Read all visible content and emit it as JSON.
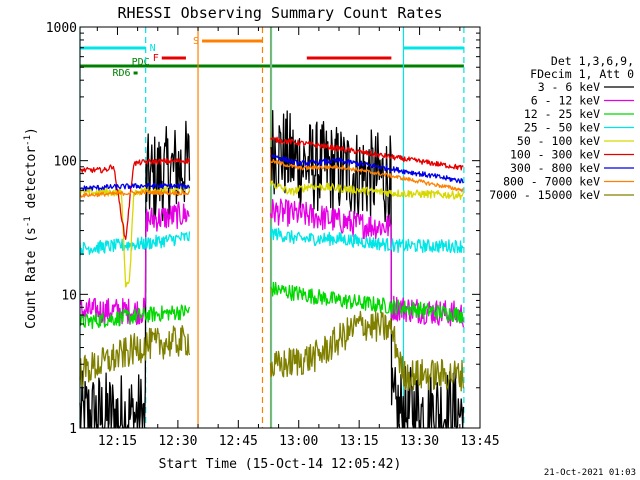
{
  "chart_data": {
    "type": "line",
    "title": "RHESSI Observing Summary Count Rates",
    "xlabel": "Start Time (15-Oct-14 12:05:42)",
    "ylabel": "Count Rate (s⁻¹ detector⁻¹)",
    "ylabel_parts": [
      "Count Rate (s",
      "-1",
      " detector",
      "-1",
      ")"
    ],
    "y_scale": "log",
    "xlim": [
      "12:05:42",
      "13:45"
    ],
    "ylim": [
      1,
      1000
    ],
    "x_ticks": [
      "12:15",
      "12:30",
      "12:45",
      "13:00",
      "13:15",
      "13:30",
      "13:45"
    ],
    "y_ticks": [
      "1",
      "10",
      "100",
      "1000"
    ],
    "legend": {
      "placement": "right",
      "header": [
        "Det 1,3,6,9,",
        "FDecim 1, Att 0"
      ],
      "entries": [
        {
          "label": "3 - 6 keV",
          "color": "#000000"
        },
        {
          "label": "6 - 12 keV",
          "color": "#e600e6"
        },
        {
          "label": "12 - 25 keV",
          "color": "#00d800"
        },
        {
          "label": "25 - 50 keV",
          "color": "#00e5e5"
        },
        {
          "label": "50 - 100 keV",
          "color": "#d8d800"
        },
        {
          "label": "100 - 300 keV",
          "color": "#e60000"
        },
        {
          "label": "300 - 800 keV",
          "color": "#0000e6"
        },
        {
          "label": "800 - 7000 keV",
          "color": "#ff8000"
        },
        {
          "label": "7000 - 15000 keV",
          "color": "#808000"
        }
      ]
    },
    "flags": [
      {
        "label": "N",
        "color": "#00e5e5",
        "spans": [
          [
            "12:05",
            "12:22"
          ],
          [
            "13:26",
            "13:41"
          ]
        ]
      },
      {
        "label": "F",
        "color": "#e60000",
        "spans": [
          [
            "12:26",
            "12:32"
          ],
          [
            "13:02",
            "13:23"
          ]
        ]
      },
      {
        "label": "S",
        "color": "#ff8000",
        "spans": [
          [
            "12:36",
            "12:51"
          ]
        ]
      },
      {
        "label": "PDC",
        "color": "#008000",
        "spans": [
          [
            "12:05",
            "13:41"
          ]
        ]
      },
      {
        "label": "RD6",
        "color": "#008000",
        "spans": [
          [
            "12:19",
            "12:20"
          ]
        ]
      }
    ],
    "vertical_markers": [
      {
        "time": "12:05:42",
        "color": "#00e5e5",
        "style": "solid"
      },
      {
        "time": "12:22",
        "color": "#00e5e5",
        "style": "dashed"
      },
      {
        "time": "12:35",
        "color": "#ff8000",
        "style": "solid"
      },
      {
        "time": "12:51",
        "color": "#ff8000",
        "style": "dashed"
      },
      {
        "time": "12:53",
        "color": "#ff8000",
        "style": "solid"
      },
      {
        "time": "12:53",
        "color": "#00e5e5",
        "style": "solid"
      },
      {
        "time": "13:26",
        "color": "#00e5e5",
        "style": "solid"
      },
      {
        "time": "13:41",
        "color": "#00e5e5",
        "style": "dashed"
      }
    ],
    "segments": [
      [
        "12:05:42",
        "12:33"
      ],
      [
        "12:53",
        "13:41"
      ]
    ],
    "series": [
      {
        "name": "3 - 6 keV",
        "color": "#000000",
        "noise": 0.35,
        "points": [
          [
            "12:05:42",
            1.2
          ],
          [
            "12:22",
            1.2
          ],
          [
            "12:22",
            70
          ],
          [
            "12:33",
            95
          ],
          [
            "12:53",
            130
          ],
          [
            "13:00",
            95
          ],
          [
            "13:10",
            85
          ],
          [
            "13:20",
            75
          ],
          [
            "13:23",
            70
          ],
          [
            "13:23",
            1.3
          ],
          [
            "13:41",
            1.3
          ]
        ]
      },
      {
        "name": "6 - 12 keV",
        "color": "#e600e6",
        "noise": 0.1,
        "points": [
          [
            "12:05:42",
            7.5
          ],
          [
            "12:22",
            7.5
          ],
          [
            "12:22",
            36
          ],
          [
            "12:33",
            40
          ],
          [
            "12:53",
            42
          ],
          [
            "13:05",
            38
          ],
          [
            "13:15",
            33
          ],
          [
            "13:23",
            32
          ],
          [
            "13:23",
            8
          ],
          [
            "13:41",
            7
          ]
        ]
      },
      {
        "name": "12 - 25 keV",
        "color": "#00d800",
        "noise": 0.06,
        "points": [
          [
            "12:05:42",
            6.2
          ],
          [
            "12:22",
            7
          ],
          [
            "12:33",
            7.5
          ],
          [
            "12:53",
            11
          ],
          [
            "13:10",
            9
          ],
          [
            "13:25",
            8
          ],
          [
            "13:41",
            7
          ]
        ]
      },
      {
        "name": "25 - 50 keV",
        "color": "#00e5e5",
        "noise": 0.05,
        "points": [
          [
            "12:05:42",
            22
          ],
          [
            "12:22",
            24
          ],
          [
            "12:33",
            27
          ],
          [
            "12:53",
            29
          ],
          [
            "13:00",
            26
          ],
          [
            "13:10",
            26
          ],
          [
            "13:25",
            23
          ],
          [
            "13:41",
            23
          ]
        ]
      },
      {
        "name": "50 - 100 keV",
        "color": "#d8d800",
        "noise": 0.03,
        "points": [
          [
            "12:05:42",
            58
          ],
          [
            "12:16",
            58
          ],
          [
            "12:17",
            12
          ],
          [
            "12:18",
            12
          ],
          [
            "12:19",
            58
          ],
          [
            "12:22",
            60
          ],
          [
            "12:33",
            62
          ],
          [
            "12:53",
            68
          ],
          [
            "12:58",
            58
          ],
          [
            "13:03",
            65
          ],
          [
            "13:15",
            60
          ],
          [
            "13:25",
            57
          ],
          [
            "13:41",
            55
          ]
        ]
      },
      {
        "name": "100 - 300 keV",
        "color": "#e60000",
        "noise": 0.02,
        "points": [
          [
            "12:05:42",
            85
          ],
          [
            "12:12",
            85
          ],
          [
            "12:14",
            92
          ],
          [
            "12:17",
            25
          ],
          [
            "12:19",
            95
          ],
          [
            "12:22",
            98
          ],
          [
            "12:33",
            100
          ],
          [
            "12:53",
            145
          ],
          [
            "13:05",
            130
          ],
          [
            "13:20",
            110
          ],
          [
            "13:41",
            88
          ]
        ]
      },
      {
        "name": "300 - 800 keV",
        "color": "#0000e6",
        "noise": 0.02,
        "points": [
          [
            "12:05:42",
            62
          ],
          [
            "12:22",
            65
          ],
          [
            "12:33",
            64
          ],
          [
            "12:53",
            110
          ],
          [
            "13:00",
            95
          ],
          [
            "13:10",
            100
          ],
          [
            "13:20",
            90
          ],
          [
            "13:41",
            70
          ]
        ]
      },
      {
        "name": "800 - 7000 keV",
        "color": "#ff8000",
        "noise": 0.015,
        "points": [
          [
            "12:05:42",
            55
          ],
          [
            "12:22",
            58
          ],
          [
            "12:33",
            57
          ],
          [
            "12:53",
            100
          ],
          [
            "13:00",
            88
          ],
          [
            "13:10",
            90
          ],
          [
            "13:20",
            80
          ],
          [
            "13:41",
            60
          ]
        ]
      },
      {
        "name": "7000 - 15000 keV",
        "color": "#808000",
        "noise": 0.12,
        "points": [
          [
            "12:05:42",
            2.6
          ],
          [
            "12:22",
            4.2
          ],
          [
            "12:33",
            4.5
          ],
          [
            "12:53",
            2.8
          ],
          [
            "13:05",
            3.5
          ],
          [
            "13:15",
            6
          ],
          [
            "13:23",
            5.5
          ],
          [
            "13:26",
            2.5
          ],
          [
            "13:41",
            2.5
          ]
        ]
      }
    ]
  },
  "footer": {
    "timestamp": "21-Oct-2021 01:03"
  }
}
